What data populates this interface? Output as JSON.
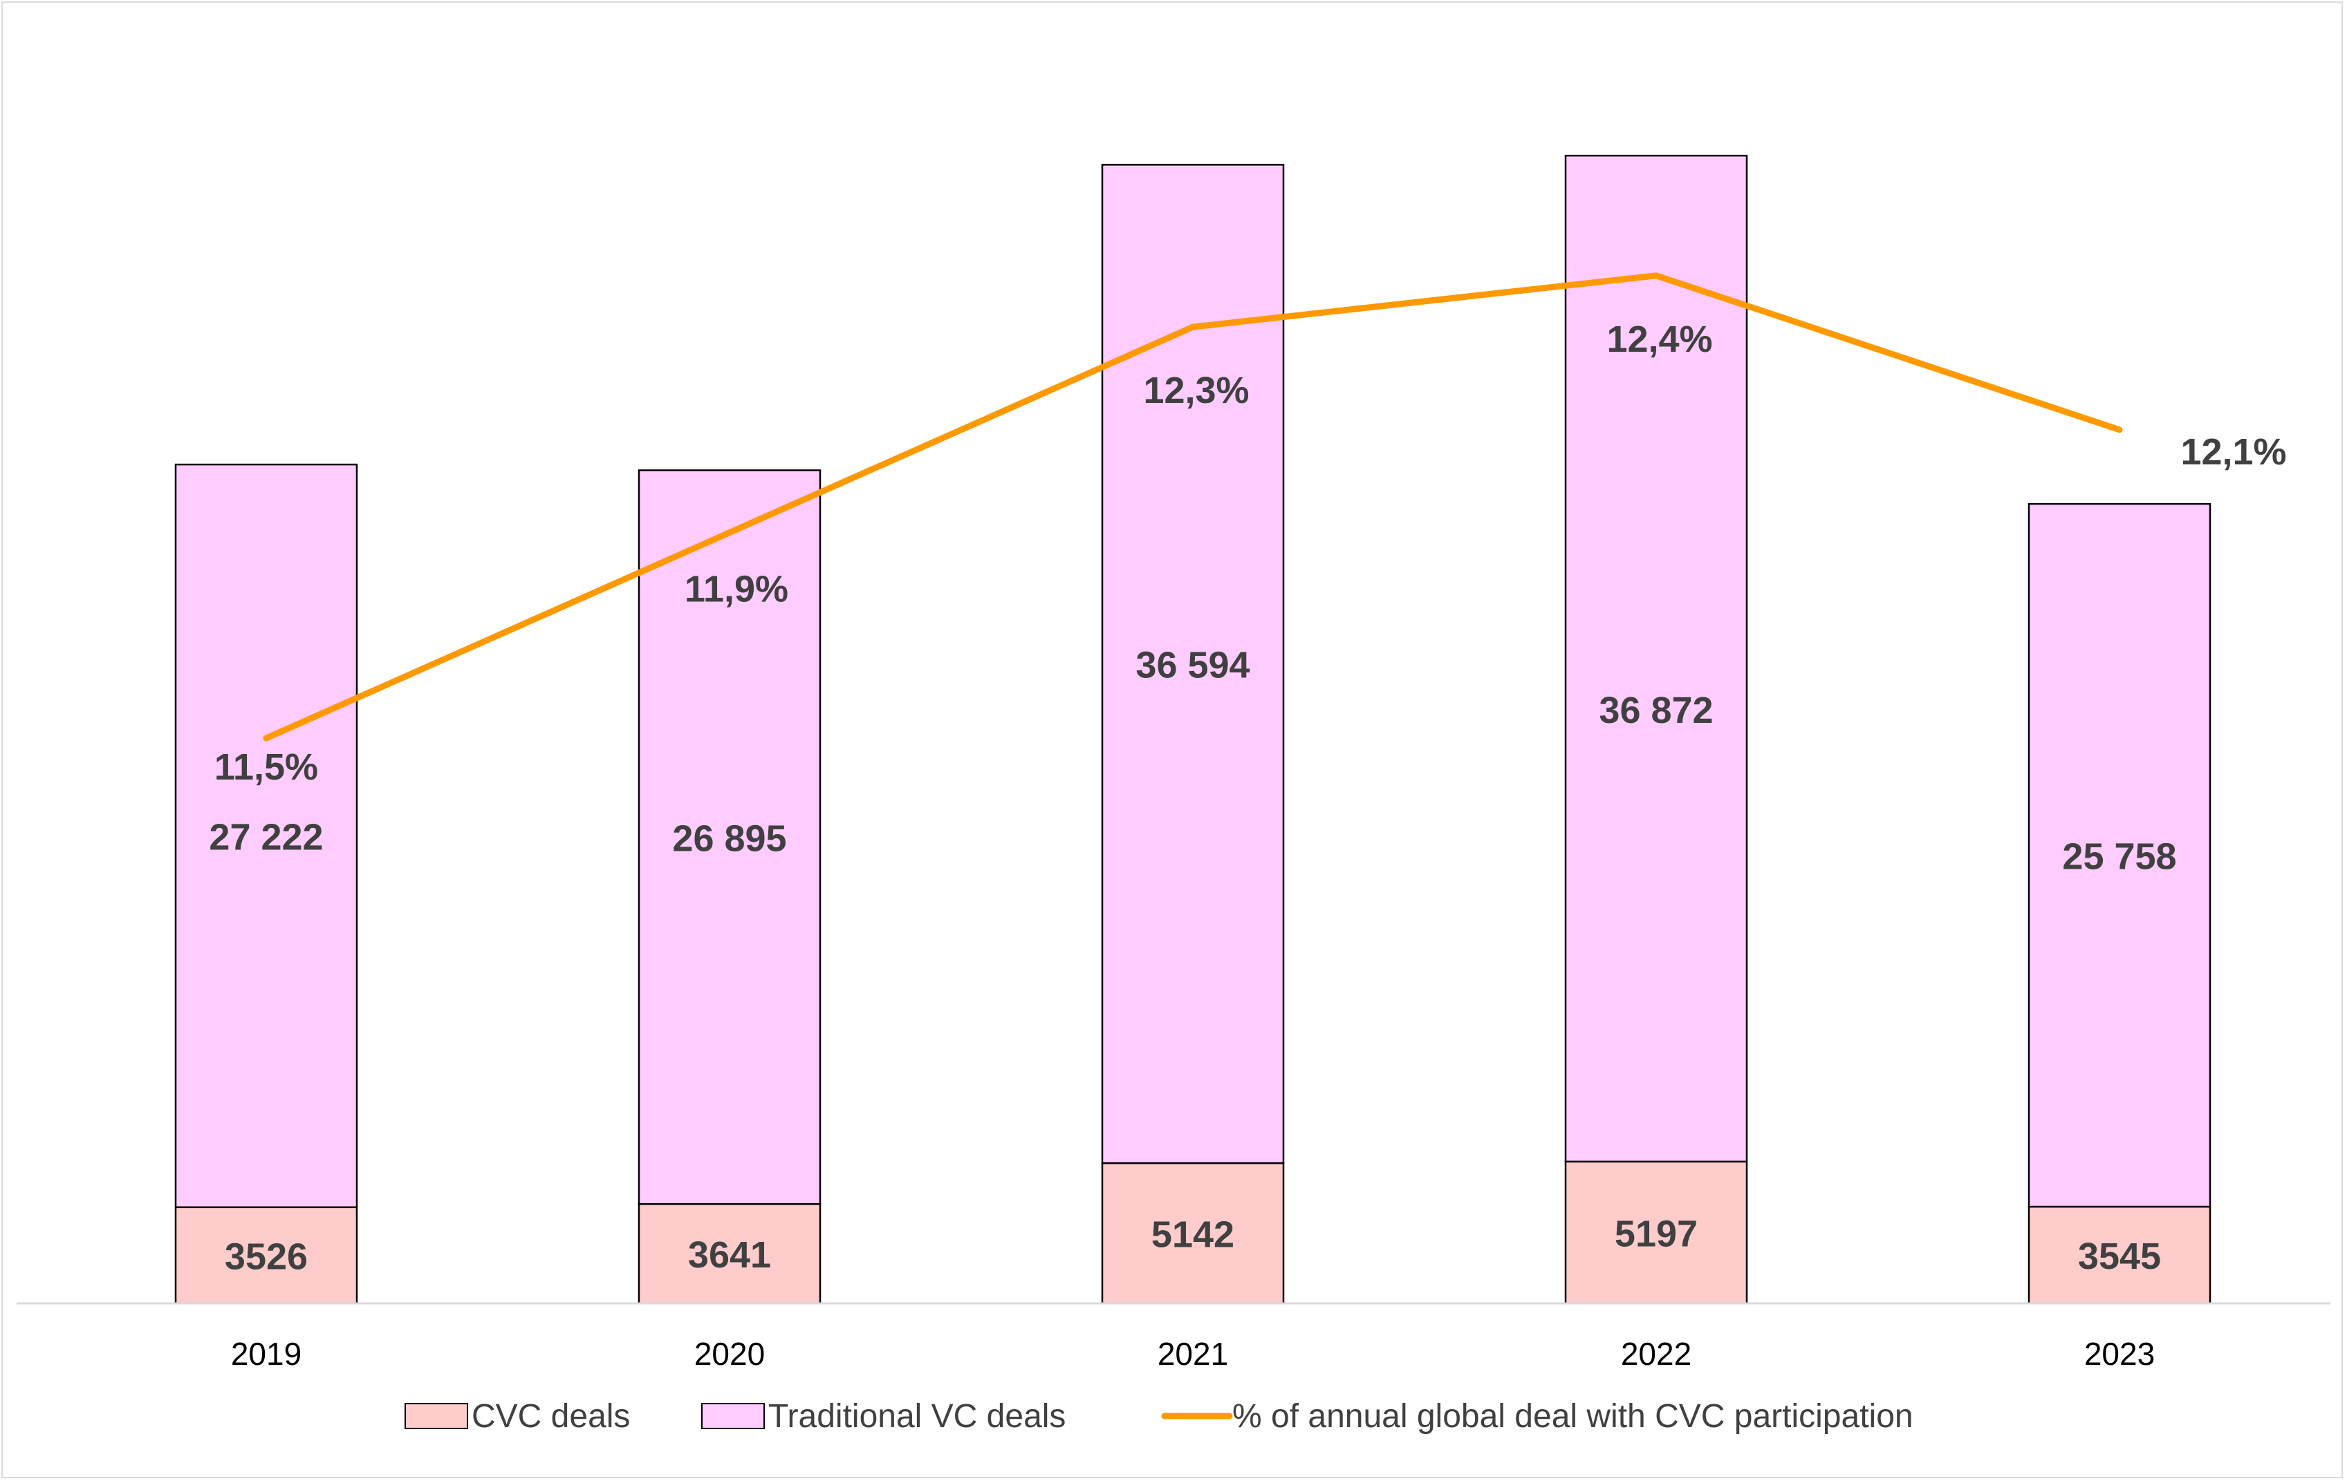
{
  "chart_data": {
    "type": "bar",
    "stacked": true,
    "categories": [
      "2019",
      "2020",
      "2021",
      "2022",
      "2023"
    ],
    "series": [
      {
        "name": "CVC deals",
        "values": [
          3526,
          3641,
          5142,
          5197,
          3545
        ],
        "labels": [
          "3526",
          "3641",
          "5142",
          "5197",
          "3545"
        ],
        "color": "#ffcccc"
      },
      {
        "name": "Traditional VC deals",
        "values": [
          27222,
          26895,
          36594,
          36872,
          25758
        ],
        "labels": [
          "27 222",
          "26 895",
          "36 594",
          "36 872",
          "25 758"
        ],
        "color": "#ffccff"
      }
    ],
    "line_series": {
      "name": "% of annual global deal with CVC participation",
      "values": [
        11.5,
        11.9,
        12.3,
        12.4,
        12.1
      ],
      "labels": [
        "11,5%",
        "11,9%",
        "12,3%",
        "12,4%",
        "12,1%"
      ],
      "color": "#ff9900"
    },
    "ylim": [
      0,
      46000
    ],
    "grid": false,
    "legend_position": "bottom"
  }
}
